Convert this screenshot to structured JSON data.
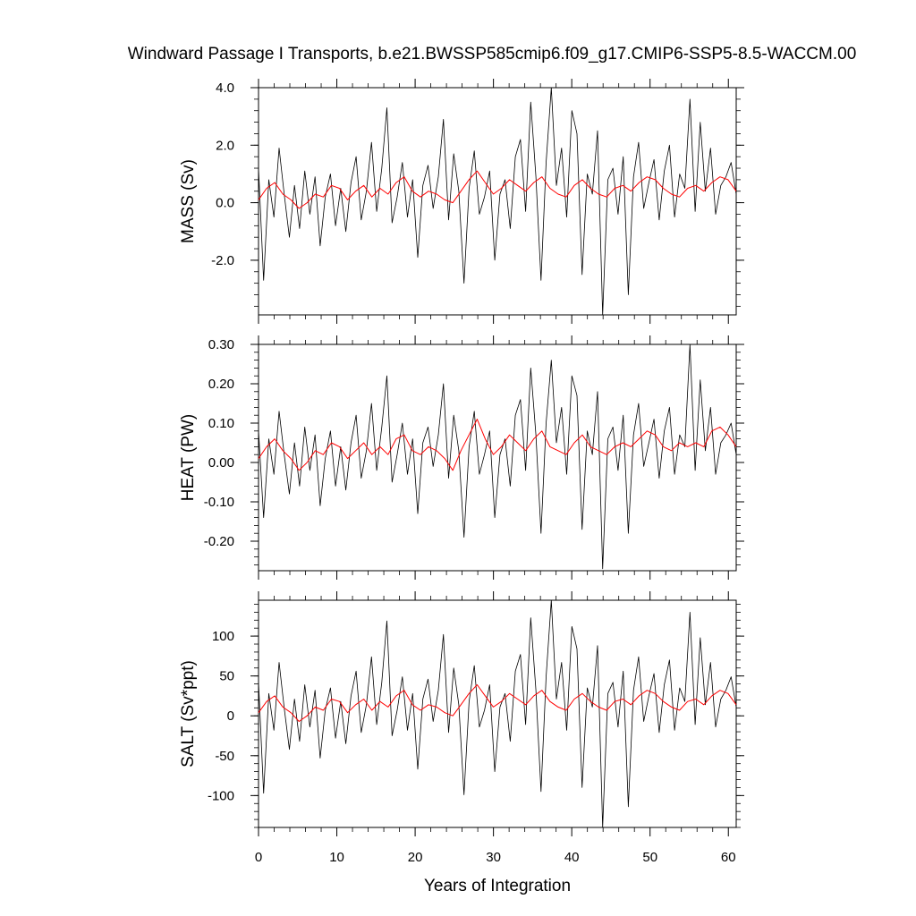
{
  "title": "Windward Passage I Transports, b.e21.BWSSP585cmip6.f09_g17.CMIP6-SSP5-8.5-WACCM.00",
  "chart_data": [
    {
      "type": "line",
      "ylabel": "MASS (Sv)",
      "xlabel": "",
      "xlim": [
        0,
        61
      ],
      "ylim": [
        -3.9,
        4.0
      ],
      "yticks": [
        4.0,
        2.0,
        0.0,
        -2.0
      ],
      "ytick_labels": [
        "4.0",
        "2.0",
        "0.0",
        "-2.0"
      ],
      "series": [
        {
          "color": "#000000",
          "values": [
            1.2,
            -2.7,
            0.8,
            -0.5,
            1.9,
            0.3,
            -1.2,
            0.6,
            -0.9,
            1.1,
            -0.4,
            0.9,
            -1.5,
            0.2,
            1.0,
            -0.8,
            0.5,
            -1.0,
            0.7,
            1.6,
            -0.6,
            0.4,
            2.1,
            -0.3,
            1.2,
            3.3,
            -0.7,
            0.2,
            1.4,
            -0.5,
            0.8,
            -1.9,
            0.6,
            1.3,
            -0.2,
            0.9,
            2.9,
            -0.6,
            1.7,
            0.4,
            -2.8,
            0.5,
            1.8,
            -0.4,
            0.2,
            1.1,
            -2.0,
            0.3,
            0.8,
            -0.9,
            1.6,
            2.2,
            -0.3,
            3.5,
            0.9,
            -2.7,
            1.4,
            4.0,
            0.6,
            1.9,
            -0.5,
            3.2,
            2.4,
            -2.5,
            1.0,
            0.3,
            2.5,
            -3.9,
            0.8,
            1.2,
            -0.4,
            1.6,
            -3.2,
            0.9,
            2.1,
            -0.2,
            0.7,
            1.5,
            -0.6,
            1.1,
            2.0,
            -0.5,
            1.0,
            0.5,
            3.6,
            -0.3,
            2.8,
            0.4,
            1.9,
            -0.4,
            0.6,
            0.9,
            1.4,
            0.3
          ]
        },
        {
          "color": "#ff0000",
          "values": [
            0.1,
            0.5,
            0.7,
            0.3,
            0.1,
            -0.2,
            0.0,
            0.3,
            0.2,
            0.6,
            0.5,
            0.1,
            0.4,
            0.6,
            0.2,
            0.5,
            0.3,
            0.7,
            0.9,
            0.4,
            0.2,
            0.4,
            0.3,
            0.1,
            0.0,
            0.4,
            0.8,
            1.1,
            0.7,
            0.3,
            0.5,
            0.8,
            0.6,
            0.4,
            0.7,
            0.9,
            0.5,
            0.3,
            0.2,
            0.6,
            0.8,
            0.5,
            0.3,
            0.2,
            0.5,
            0.6,
            0.4,
            0.7,
            0.9,
            0.8,
            0.5,
            0.3,
            0.2,
            0.5,
            0.6,
            0.4,
            0.7,
            0.9,
            0.8,
            0.4
          ]
        }
      ]
    },
    {
      "type": "line",
      "ylabel": "HEAT (PW)",
      "xlabel": "",
      "xlim": [
        0,
        61
      ],
      "ylim": [
        -0.275,
        0.3
      ],
      "yticks": [
        0.3,
        0.2,
        0.1,
        0.0,
        -0.1,
        -0.2
      ],
      "ytick_labels": [
        "0.30",
        "0.20",
        "0.10",
        "0.00",
        "-0.10",
        "-0.20"
      ],
      "series": [
        {
          "color": "#000000",
          "values": [
            0.08,
            -0.14,
            0.06,
            -0.03,
            0.13,
            0.02,
            -0.08,
            0.05,
            -0.06,
            0.09,
            -0.02,
            0.07,
            -0.11,
            0.01,
            0.08,
            -0.06,
            0.04,
            -0.07,
            0.05,
            0.12,
            -0.04,
            0.03,
            0.15,
            -0.02,
            0.09,
            0.22,
            -0.05,
            0.02,
            0.1,
            -0.03,
            0.06,
            -0.13,
            0.05,
            0.09,
            -0.01,
            0.07,
            0.2,
            -0.04,
            0.12,
            0.03,
            -0.19,
            0.04,
            0.13,
            -0.03,
            0.02,
            0.08,
            -0.14,
            0.02,
            0.06,
            -0.06,
            0.12,
            0.16,
            -0.02,
            0.24,
            0.07,
            -0.18,
            0.1,
            0.26,
            0.05,
            0.14,
            -0.03,
            0.22,
            0.17,
            -0.17,
            0.08,
            0.02,
            0.18,
            -0.27,
            0.06,
            0.09,
            -0.02,
            0.12,
            -0.18,
            0.07,
            0.15,
            -0.01,
            0.05,
            0.11,
            -0.04,
            0.08,
            0.14,
            -0.03,
            0.07,
            0.04,
            0.3,
            -0.02,
            0.21,
            0.03,
            0.14,
            -0.03,
            0.05,
            0.07,
            0.1,
            0.02
          ]
        },
        {
          "color": "#ff0000",
          "values": [
            0.01,
            0.04,
            0.06,
            0.03,
            0.01,
            -0.02,
            0.0,
            0.03,
            0.02,
            0.05,
            0.04,
            0.01,
            0.03,
            0.05,
            0.02,
            0.04,
            0.02,
            0.06,
            0.07,
            0.03,
            0.02,
            0.04,
            0.03,
            0.01,
            -0.02,
            0.03,
            0.07,
            0.11,
            0.06,
            0.02,
            0.04,
            0.07,
            0.05,
            0.03,
            0.06,
            0.08,
            0.04,
            0.03,
            0.02,
            0.05,
            0.07,
            0.04,
            0.03,
            0.02,
            0.04,
            0.05,
            0.04,
            0.06,
            0.08,
            0.07,
            0.04,
            0.03,
            0.05,
            0.04,
            0.05,
            0.04,
            0.08,
            0.09,
            0.07,
            0.04
          ]
        }
      ]
    },
    {
      "type": "line",
      "ylabel": "SALT (Sv*ppt)",
      "xlabel": "Years of Integration",
      "xlim": [
        0,
        61
      ],
      "ylim": [
        -140,
        145
      ],
      "xticks": [
        0,
        10,
        20,
        30,
        40,
        50,
        60
      ],
      "xtick_labels": [
        "0",
        "10",
        "20",
        "30",
        "40",
        "50",
        "60"
      ],
      "yticks": [
        100,
        50,
        0,
        -50,
        -100
      ],
      "ytick_labels": [
        "100",
        "50",
        "0",
        "-50",
        "-100"
      ],
      "series": [
        {
          "color": "#000000",
          "values": [
            42,
            -97,
            28,
            -18,
            67,
            10,
            -42,
            21,
            -32,
            39,
            -14,
            32,
            -53,
            7,
            35,
            -28,
            18,
            -35,
            25,
            56,
            -21,
            14,
            74,
            -11,
            42,
            119,
            -25,
            7,
            49,
            -18,
            28,
            -67,
            21,
            46,
            -7,
            32,
            102,
            -21,
            60,
            14,
            -99,
            18,
            63,
            -14,
            7,
            39,
            -70,
            11,
            28,
            -32,
            56,
            77,
            -11,
            123,
            32,
            -95,
            49,
            145,
            21,
            67,
            -18,
            112,
            84,
            -90,
            35,
            11,
            88,
            -140,
            28,
            42,
            -14,
            56,
            -114,
            32,
            74,
            -7,
            25,
            53,
            -21,
            39,
            70,
            -18,
            35,
            18,
            130,
            -11,
            98,
            14,
            67,
            -14,
            21,
            32,
            49,
            11
          ]
        },
        {
          "color": "#ff0000",
          "values": [
            4,
            18,
            25,
            11,
            4,
            -7,
            0,
            11,
            7,
            21,
            18,
            4,
            14,
            21,
            7,
            18,
            11,
            25,
            32,
            14,
            7,
            14,
            11,
            4,
            0,
            14,
            28,
            39,
            25,
            11,
            18,
            28,
            21,
            14,
            25,
            32,
            18,
            11,
            7,
            21,
            28,
            18,
            11,
            7,
            18,
            21,
            14,
            25,
            32,
            28,
            18,
            11,
            7,
            18,
            21,
            14,
            25,
            32,
            28,
            14
          ]
        }
      ]
    }
  ]
}
